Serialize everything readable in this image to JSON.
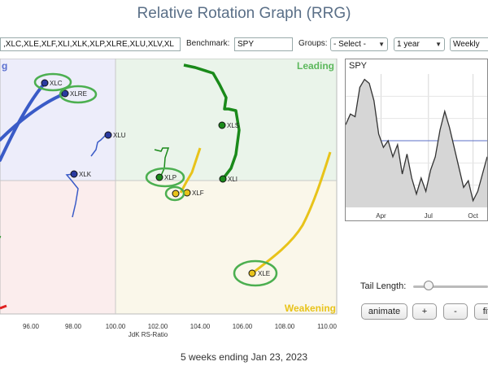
{
  "title": "Relative Rotation Graph (RRG)",
  "toolbar": {
    "symbols_value": ",XLC,XLE,XLF,XLI,XLK,XLP,XLRE,XLU,XLV,XL",
    "benchmark_label": "Benchmark:",
    "benchmark_value": "SPY",
    "groups_label": "Groups:",
    "groups_value": "- Select -",
    "period_value": "1 year",
    "interval_value": "Weekly"
  },
  "rrg": {
    "quadrant_leading": "Leading",
    "quadrant_weakening": "Weakening",
    "quadrant_improving_partial": "g",
    "xlabel": "JdK RS-Ratio",
    "x_ticks": [
      "96.00",
      "98.00",
      "100.00",
      "102.00",
      "104.00",
      "106.00",
      "108.00",
      "110.00"
    ],
    "colors": {
      "leading_bg": "#eaf4ea",
      "weakening_bg": "#faf7ea",
      "improving_bg": "#ededfa",
      "lagging_bg": "#fbeded",
      "blue": "#3a5bc7",
      "green": "#1a8a1a",
      "yellow": "#e8c31a",
      "red": "#e02020",
      "highlight": "#4caf50"
    },
    "labels": {
      "xlc": "XLC",
      "xlre": "XLRE",
      "xlu": "XLU",
      "xlk": "XLK",
      "xlv": "XLV",
      "xli": "XLI",
      "xlp": "XLP",
      "xlf": "XLF",
      "xle": "XLE"
    }
  },
  "chart_data": {
    "type": "line",
    "title": "SPY",
    "x_ticks": [
      "Apr",
      "Jul",
      "Oct"
    ],
    "series": [
      {
        "name": "SPY",
        "values": [
          0.62,
          0.7,
          0.68,
          0.9,
          0.96,
          0.93,
          0.8,
          0.55,
          0.45,
          0.5,
          0.38,
          0.47,
          0.25,
          0.4,
          0.22,
          0.1,
          0.22,
          0.12,
          0.28,
          0.38,
          0.58,
          0.72,
          0.6,
          0.45,
          0.3,
          0.15,
          0.2,
          0.05,
          0.12,
          0.25,
          0.38
        ]
      }
    ],
    "benchmark_line": 0.5
  },
  "controls": {
    "tail_length_label": "Tail Length:",
    "animate_label": "animate",
    "plus_label": "+",
    "minus_label": "-",
    "fit_label": "fit"
  },
  "footer": "5 weeks ending Jan 23, 2023"
}
